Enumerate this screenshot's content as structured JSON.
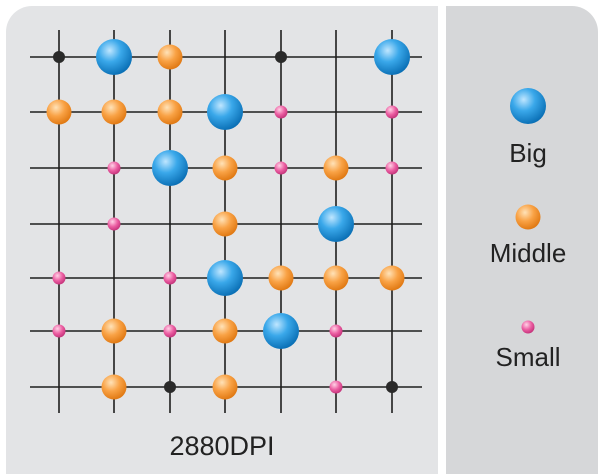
{
  "caption": "2880DPI",
  "colors": {
    "big": "#2f9fe0",
    "middle": "#f7941d",
    "small": "#e8509a",
    "dot": "#2a2a2a"
  },
  "grid": {
    "columns": 7,
    "rows": 7
  },
  "legend": [
    {
      "key": "big",
      "label": "Big"
    },
    {
      "key": "middle",
      "label": "Middle"
    },
    {
      "key": "small",
      "label": "Small"
    }
  ],
  "dots": [
    {
      "col": 0,
      "row": 0,
      "size": "tiny"
    },
    {
      "col": 1,
      "row": 0,
      "size": "big"
    },
    {
      "col": 2,
      "row": 0,
      "size": "middle"
    },
    {
      "col": 4,
      "row": 0,
      "size": "tiny"
    },
    {
      "col": 6,
      "row": 0,
      "size": "big"
    },
    {
      "col": 0,
      "row": 1,
      "size": "middle"
    },
    {
      "col": 1,
      "row": 1,
      "size": "middle"
    },
    {
      "col": 2,
      "row": 1,
      "size": "middle"
    },
    {
      "col": 3,
      "row": 1,
      "size": "big"
    },
    {
      "col": 4,
      "row": 1,
      "size": "small"
    },
    {
      "col": 6,
      "row": 1,
      "size": "small"
    },
    {
      "col": 1,
      "row": 2,
      "size": "small"
    },
    {
      "col": 2,
      "row": 2,
      "size": "big"
    },
    {
      "col": 3,
      "row": 2,
      "size": "middle"
    },
    {
      "col": 4,
      "row": 2,
      "size": "small"
    },
    {
      "col": 5,
      "row": 2,
      "size": "middle"
    },
    {
      "col": 6,
      "row": 2,
      "size": "small"
    },
    {
      "col": 1,
      "row": 3,
      "size": "small"
    },
    {
      "col": 3,
      "row": 3,
      "size": "middle"
    },
    {
      "col": 5,
      "row": 3,
      "size": "big"
    },
    {
      "col": 0,
      "row": 4,
      "size": "small"
    },
    {
      "col": 2,
      "row": 4,
      "size": "small"
    },
    {
      "col": 3,
      "row": 4,
      "size": "big"
    },
    {
      "col": 4,
      "row": 4,
      "size": "middle"
    },
    {
      "col": 5,
      "row": 4,
      "size": "middle"
    },
    {
      "col": 6,
      "row": 4,
      "size": "middle"
    },
    {
      "col": 0,
      "row": 5,
      "size": "small"
    },
    {
      "col": 1,
      "row": 5,
      "size": "middle"
    },
    {
      "col": 2,
      "row": 5,
      "size": "small"
    },
    {
      "col": 3,
      "row": 5,
      "size": "middle"
    },
    {
      "col": 4,
      "row": 5,
      "size": "big"
    },
    {
      "col": 5,
      "row": 5,
      "size": "small"
    },
    {
      "col": 1,
      "row": 6,
      "size": "middle"
    },
    {
      "col": 2,
      "row": 6,
      "size": "tiny"
    },
    {
      "col": 3,
      "row": 6,
      "size": "middle"
    },
    {
      "col": 5,
      "row": 6,
      "size": "small"
    },
    {
      "col": 6,
      "row": 6,
      "size": "tiny"
    }
  ]
}
